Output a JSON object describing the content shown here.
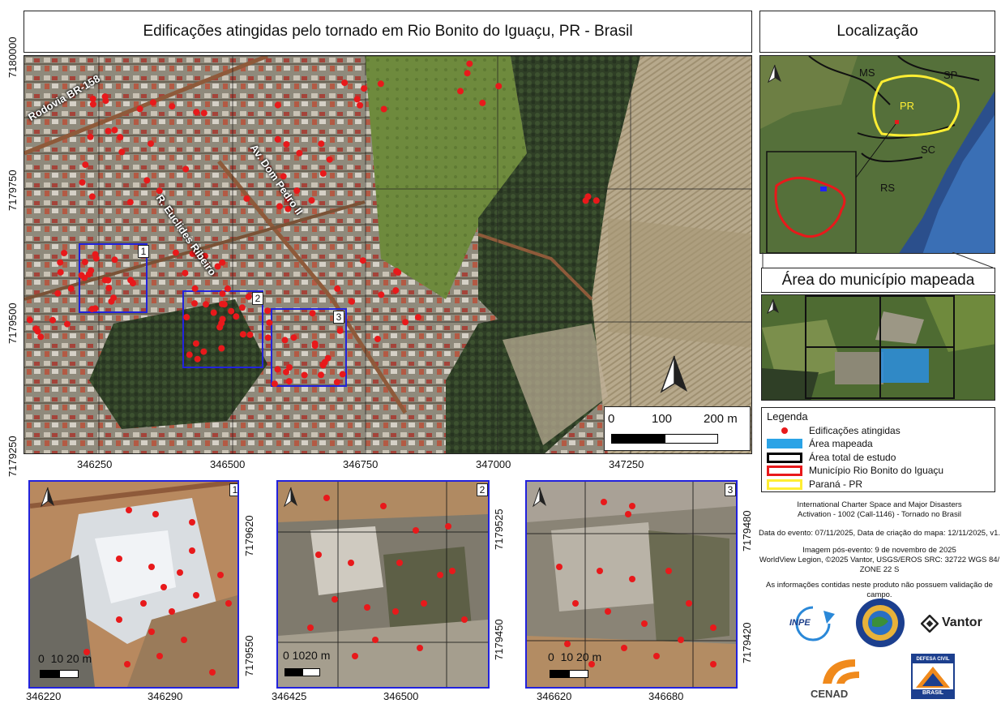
{
  "title": "Edificações atingidas pelo tornado em Rio Bonito do Iguaçu, PR - Brasil",
  "location_title": "Localização",
  "mapped_area_title": "Área do município mapeada",
  "main_map": {
    "x_ticks": [
      "346250",
      "346500",
      "346750",
      "347000",
      "347250"
    ],
    "y_ticks": [
      "7180000",
      "7179750",
      "7179500",
      "7179250"
    ],
    "road_labels": [
      "Rodovia BR-158",
      "Av. Dom Pedro II",
      "R. Euclides Ribeiro"
    ],
    "inset_box_numbers": [
      "1",
      "2",
      "3"
    ],
    "scale": {
      "ticks": [
        "0",
        "100",
        "200 m"
      ]
    }
  },
  "location_map": {
    "state_labels": [
      "MS",
      "SP",
      "PR",
      "SC",
      "RS"
    ]
  },
  "insets": [
    {
      "number": "1",
      "x_ticks": [
        "346220",
        "346290"
      ],
      "y_ticks": [
        "7179620",
        "7179550"
      ],
      "scale": "0  10 20 m"
    },
    {
      "number": "2",
      "x_ticks": [
        "346425",
        "346500"
      ],
      "y_ticks": [
        "7179525",
        "7179450"
      ],
      "scale": "0 1020 m"
    },
    {
      "number": "3",
      "x_ticks": [
        "346620",
        "346680"
      ],
      "y_ticks": [
        "7179480",
        "7179420"
      ],
      "scale": "0  10 20 m"
    }
  ],
  "legend": {
    "title": "Legenda",
    "items": [
      {
        "label": "Edificações atingidas",
        "color": "#e8191b"
      },
      {
        "label": "Área mapeada",
        "color": "#2aa3e6"
      },
      {
        "label": "Área total de estudo",
        "color": "#000000"
      },
      {
        "label": "Município Rio Bonito do Iguaçu",
        "color": "#e8191b"
      },
      {
        "label": "Paraná - PR",
        "color": "#ffee33"
      }
    ]
  },
  "credits": {
    "charter": "International Charter Space and Major Disasters",
    "activation": "Activation - 1002 (Call-1146) - Tornado no Brasil",
    "dates": "Data do evento: 07/11/2025, Data de criação do mapa: 12/11/2025, v1.",
    "image_date": "Imagem pós-evento: 9 de novembro de 2025",
    "source": "WorldView Legion, ©2025 Vantor, USGS/EROS SRC: 32722 WGS 84/",
    "zone": "ZONE 22 S",
    "disclaimer": "As informações contidas neste produto não possuem validação de campo."
  },
  "logos": {
    "inpe": "INPE",
    "vantor": "Vantor",
    "cenad": "CENAD",
    "defesa_top": "DEFESA CIVIL",
    "defesa_bottom": "BRASIL"
  },
  "colors": {
    "damage_dot": "#e8191b",
    "inset_box": "#2222dd",
    "parana_outline": "#ffee33",
    "municipio_outline": "#e8191b"
  }
}
